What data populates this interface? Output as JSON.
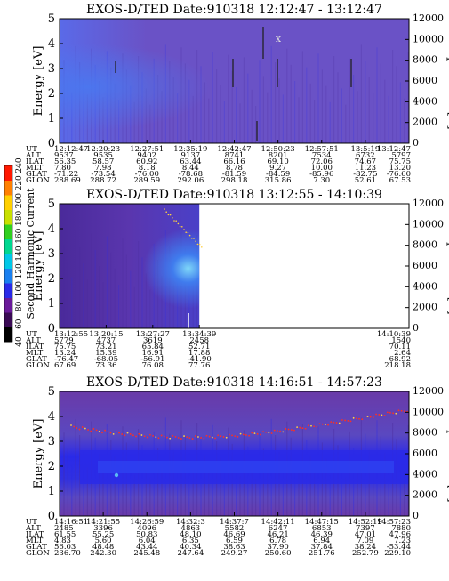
{
  "colors": {
    "spectrogram_bg": "#6a52c6",
    "spectrogram_dark": "#4a2a9a",
    "spectrogram_blue": "#2a2ae8",
    "spectrogram_light": "#3f7ff0",
    "spectrogram_cyan": "#5ab8f2",
    "trace_red": "#ff3020",
    "trace_yellow": "#ffd040"
  },
  "colorbar": {
    "label": "Second Harmonic Current",
    "ticks": [
      "40",
      "60",
      "80",
      "100",
      "120",
      "140",
      "160",
      "180",
      "200",
      "220",
      "240"
    ],
    "colors": [
      "#000000",
      "#3a0a55",
      "#6a1a9a",
      "#2a2ae8",
      "#1a80f0",
      "#00c8e8",
      "#00d890",
      "#30d020",
      "#c8e000",
      "#ffd000",
      "#ff8000",
      "#ff1800"
    ]
  },
  "chart_data": [
    {
      "type": "heatmap",
      "title": "EXOS-D/TED   Date:910318   12:12:47 - 13:12:47",
      "ylabel": "Energy [eV]",
      "y2label": "Temperature [K]",
      "ylim": [
        0,
        5
      ],
      "y2lim": [
        0,
        12000
      ],
      "yticks": [
        "0",
        "1",
        "2",
        "3",
        "4",
        "5"
      ],
      "y2ticks": [
        "0",
        "2000",
        "4000",
        "6000",
        "8000",
        "10000",
        "12000"
      ],
      "data_extent": 1.0,
      "rows": [
        {
          "label": "UT",
          "values": [
            "12:12:47",
            "12:20:23",
            "12:27:51",
            "12:35:19",
            "12:42:47",
            "12:50:23",
            "12:57:51",
            "13:5:19",
            "13:12:47"
          ]
        },
        {
          "label": "ALT",
          "values": [
            "9537",
            "9535",
            "9402",
            "9137",
            "8741",
            "8201",
            "7534",
            "6732",
            "5797"
          ]
        },
        {
          "label": "ILAT",
          "values": [
            "56.35",
            "58.57",
            "60.92",
            "63.44",
            "66.16",
            "69.10",
            "72.06",
            "74.67",
            "75.75"
          ]
        },
        {
          "label": "MLT",
          "values": [
            "7.80",
            "7.98",
            "8.18",
            "8.44",
            "8.78",
            "9.27",
            "10.00",
            "11.23",
            "13.20"
          ]
        },
        {
          "label": "GLAT",
          "values": [
            "-71.22",
            "-73.54",
            "-76.00",
            "-78.68",
            "-81.59",
            "-84.59",
            "-85.96",
            "-82.75",
            "-76.60"
          ]
        },
        {
          "label": "GLON",
          "values": [
            "288.69",
            "288.72",
            "289.59",
            "292.06",
            "298.18",
            "315.86",
            "7.30",
            "52.61",
            "67.53"
          ]
        }
      ]
    },
    {
      "type": "heatmap",
      "title": "EXOS-D/TED   Date:910318   13:12:55 - 14:10:39",
      "ylabel": "Energy [eV]",
      "y2label": "Temperature [K]",
      "ylim": [
        0,
        5
      ],
      "y2lim": [
        0,
        12000
      ],
      "yticks": [
        "0",
        "1",
        "2",
        "3",
        "4",
        "5"
      ],
      "y2ticks": [
        "0",
        "2000",
        "4000",
        "6000",
        "8000",
        "10000",
        "12000"
      ],
      "data_extent": 0.4,
      "rows": [
        {
          "label": "UT",
          "values": [
            "13:12:55",
            "13:20:15",
            "13:27:27",
            "13:34:39",
            "14:10:39"
          ]
        },
        {
          "label": "ALT",
          "values": [
            "5779",
            "4737",
            "3619",
            "2458",
            "1540"
          ]
        },
        {
          "label": "ILAT",
          "values": [
            "75.75",
            "73.21",
            "65.84",
            "52.71",
            "70.11"
          ]
        },
        {
          "label": "MLT",
          "values": [
            "13.24",
            "15.39",
            "16.91",
            "17.88",
            "2.64"
          ]
        },
        {
          "label": "GLAT",
          "values": [
            "-76.47",
            "-68.05",
            "-56.91",
            "-41.90",
            "68.92"
          ]
        },
        {
          "label": "GLON",
          "values": [
            "67.69",
            "73.36",
            "76.08",
            "77.76",
            "218.18"
          ]
        }
      ]
    },
    {
      "type": "heatmap",
      "title": "EXOS-D/TED   Date:910318   14:16:51 - 14:57:23",
      "ylabel": "Energy [eV]",
      "y2label": "Temperature [K]",
      "ylim": [
        0,
        5
      ],
      "y2lim": [
        0,
        12000
      ],
      "yticks": [
        "0",
        "1",
        "2",
        "3",
        "4",
        "5"
      ],
      "y2ticks": [
        "0",
        "2000",
        "4000",
        "6000",
        "8000",
        "10000",
        "12000"
      ],
      "data_extent": 1.0,
      "rows": [
        {
          "label": "UT",
          "values": [
            "14:16:51",
            "14:21:55",
            "14:26:59",
            "14:32:3",
            "14:37:7",
            "14:42:11",
            "14:47:15",
            "14:52:19",
            "14:57:23"
          ]
        },
        {
          "label": "ALT",
          "values": [
            "2485",
            "3396",
            "4096",
            "4863",
            "5582",
            "6247",
            "6853",
            "7397",
            "7880"
          ]
        },
        {
          "label": "ILAT",
          "values": [
            "61.55",
            "55.25",
            "50.83",
            "48.10",
            "46.69",
            "46.21",
            "46.39",
            "47.01",
            "47.96"
          ]
        },
        {
          "label": "MLT",
          "values": [
            "4.83",
            "5.60",
            "6.04",
            "6.35",
            "6.59",
            "6.78",
            "6.94",
            "7.09",
            "7.23"
          ]
        },
        {
          "label": "GLAT",
          "values": [
            "56.03",
            "48.48",
            "43.44",
            "40.34",
            "38.63",
            "37.90",
            "37.84",
            "38.24",
            "-53.44"
          ]
        },
        {
          "label": "GLON",
          "values": [
            "236.70",
            "242.30",
            "245.48",
            "247.64",
            "249.27",
            "250.60",
            "251.76",
            "252.79",
            "229.10"
          ]
        }
      ]
    }
  ]
}
